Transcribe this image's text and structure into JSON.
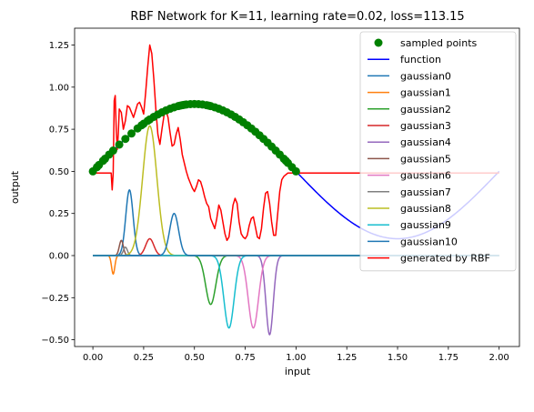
{
  "chart_data": {
    "type": "line",
    "title": "RBF Network for K=11, learning rate=0.02, loss=113.15",
    "xlabel": "input",
    "ylabel": "output",
    "xlim": [
      -0.09,
      2.1
    ],
    "ylim": [
      -0.54,
      1.35
    ],
    "xticks": [
      0.0,
      0.25,
      0.5,
      0.75,
      1.0,
      1.25,
      1.5,
      1.75,
      2.0
    ],
    "xtick_labels": [
      "0.00",
      "0.25",
      "0.50",
      "0.75",
      "1.00",
      "1.25",
      "1.50",
      "1.75",
      "2.00"
    ],
    "yticks": [
      -0.5,
      -0.25,
      0.0,
      0.25,
      0.5,
      0.75,
      1.0,
      1.25
    ],
    "ytick_labels": [
      "−0.50",
      "−0.25",
      "0.00",
      "0.25",
      "0.50",
      "0.75",
      "1.00",
      "1.25"
    ],
    "legend_position": "top-right",
    "grid": false,
    "series": [
      {
        "name": "sampled points",
        "kind": "scatter",
        "color": "#008000",
        "x": [
          0.0,
          0.02,
          0.03,
          0.05,
          0.06,
          0.08,
          0.1,
          0.13,
          0.16,
          0.19,
          0.22,
          0.24,
          0.25,
          0.27,
          0.28,
          0.3,
          0.32,
          0.34,
          0.36,
          0.38,
          0.4,
          0.42,
          0.43,
          0.44,
          0.45,
          0.46,
          0.48,
          0.5,
          0.52,
          0.54,
          0.56,
          0.57,
          0.58,
          0.6,
          0.62,
          0.64,
          0.66,
          0.68,
          0.7,
          0.72,
          0.74,
          0.76,
          0.78,
          0.8,
          0.82,
          0.84,
          0.86,
          0.88,
          0.9,
          0.92,
          0.94,
          0.95,
          0.96,
          0.98,
          1.0
        ]
      },
      {
        "name": "function",
        "kind": "line",
        "color": "#0000ff",
        "x_range": [
          0.0,
          2.0
        ],
        "y_label_formula": "0.5 + 0.4*sin(2*pi*x/2)"
      },
      {
        "name": "gaussian0",
        "kind": "line",
        "color": "#1f77b4",
        "center": 0.18,
        "amplitude": 0.39,
        "width": 0.018
      },
      {
        "name": "gaussian1",
        "kind": "line",
        "color": "#ff7f0e",
        "center": 0.1,
        "amplitude": -0.11,
        "width": 0.008
      },
      {
        "name": "gaussian2",
        "kind": "line",
        "color": "#2ca02c",
        "center": 0.58,
        "amplitude": -0.29,
        "width": 0.025
      },
      {
        "name": "gaussian3",
        "kind": "line",
        "color": "#d62728",
        "center": 0.28,
        "amplitude": 0.1,
        "width": 0.02
      },
      {
        "name": "gaussian4",
        "kind": "line",
        "color": "#9467bd",
        "center": 0.87,
        "amplitude": -0.47,
        "width": 0.018
      },
      {
        "name": "gaussian5",
        "kind": "line",
        "color": "#8c564b",
        "center": 0.14,
        "amplitude": 0.09,
        "width": 0.01
      },
      {
        "name": "gaussian6",
        "kind": "line",
        "color": "#e377c2",
        "center": 0.79,
        "amplitude": -0.43,
        "width": 0.025
      },
      {
        "name": "gaussian7",
        "kind": "line",
        "color": "#7f7f7f",
        "center": 0.16,
        "amplitude": 0.05,
        "width": 0.01
      },
      {
        "name": "gaussian8",
        "kind": "line",
        "color": "#bcbd22",
        "center": 0.28,
        "amplitude": 0.77,
        "width": 0.035
      },
      {
        "name": "gaussian9",
        "kind": "line",
        "color": "#17becf",
        "center": 0.67,
        "amplitude": -0.43,
        "width": 0.025
      },
      {
        "name": "gaussian10",
        "kind": "line",
        "color": "#1f77b4",
        "center": 0.4,
        "amplitude": 0.25,
        "width": 0.022
      },
      {
        "name": "generated by RBF",
        "kind": "line",
        "color": "#ff0000",
        "x": [
          0.0,
          0.09,
          0.095,
          0.1,
          0.105,
          0.11,
          0.115,
          0.12,
          0.125,
          0.13,
          0.14,
          0.15,
          0.16,
          0.17,
          0.18,
          0.19,
          0.2,
          0.21,
          0.22,
          0.23,
          0.24,
          0.25,
          0.26,
          0.27,
          0.28,
          0.29,
          0.3,
          0.31,
          0.32,
          0.33,
          0.34,
          0.35,
          0.36,
          0.37,
          0.38,
          0.39,
          0.4,
          0.41,
          0.42,
          0.43,
          0.44,
          0.45,
          0.46,
          0.47,
          0.48,
          0.49,
          0.5,
          0.51,
          0.52,
          0.53,
          0.54,
          0.55,
          0.56,
          0.57,
          0.58,
          0.59,
          0.6,
          0.61,
          0.62,
          0.63,
          0.64,
          0.65,
          0.66,
          0.67,
          0.68,
          0.69,
          0.7,
          0.71,
          0.72,
          0.73,
          0.74,
          0.75,
          0.76,
          0.77,
          0.78,
          0.79,
          0.8,
          0.81,
          0.82,
          0.83,
          0.84,
          0.85,
          0.86,
          0.87,
          0.88,
          0.89,
          0.9,
          0.91,
          0.92,
          0.93,
          0.94,
          0.95,
          0.96,
          1.0,
          2.0
        ],
        "y": [
          0.49,
          0.49,
          0.39,
          0.49,
          0.92,
          0.95,
          0.75,
          0.63,
          0.72,
          0.87,
          0.85,
          0.75,
          0.8,
          0.89,
          0.88,
          0.85,
          0.82,
          0.86,
          0.9,
          0.91,
          0.88,
          0.84,
          0.97,
          1.12,
          1.25,
          1.2,
          1.05,
          0.87,
          0.72,
          0.66,
          0.75,
          0.83,
          0.86,
          0.82,
          0.73,
          0.65,
          0.66,
          0.72,
          0.76,
          0.69,
          0.6,
          0.55,
          0.5,
          0.46,
          0.43,
          0.4,
          0.38,
          0.41,
          0.45,
          0.44,
          0.4,
          0.35,
          0.31,
          0.29,
          0.22,
          0.19,
          0.16,
          0.22,
          0.3,
          0.27,
          0.2,
          0.13,
          0.09,
          0.11,
          0.2,
          0.3,
          0.34,
          0.31,
          0.2,
          0.13,
          0.11,
          0.1,
          0.12,
          0.18,
          0.22,
          0.23,
          0.17,
          0.11,
          0.1,
          0.16,
          0.28,
          0.37,
          0.38,
          0.31,
          0.2,
          0.12,
          0.12,
          0.25,
          0.38,
          0.45,
          0.47,
          0.48,
          0.49,
          0.49,
          0.49
        ]
      }
    ]
  }
}
